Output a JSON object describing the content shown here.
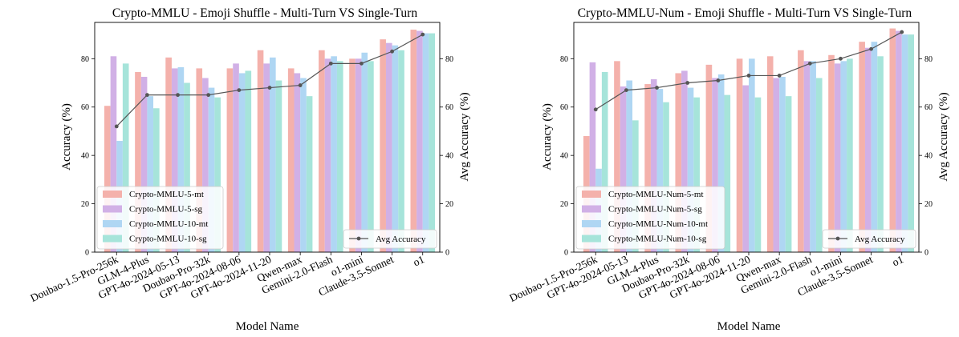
{
  "colors": {
    "mt5": "#f4b1ab",
    "sg5": "#d1b0e6",
    "mt10": "#afd6f3",
    "sg10": "#a6e4da",
    "avg": "#555555"
  },
  "chart_data": [
    {
      "type": "bar",
      "title": "Crypto-MMLU - Emoji Shuffle - Multi-Turn VS Single-Turn",
      "xlabel": "Model Name",
      "ylabel": "Accuracy (%)",
      "y2label": "Avg Accuracy (%)",
      "ylim": [
        0,
        95
      ],
      "y2lim": [
        0,
        95
      ],
      "yticks": [
        0,
        20,
        40,
        60,
        80
      ],
      "grid": false,
      "legend_position": "lower-left",
      "categories": [
        "Doubao-1.5-Pro-256k",
        "GLM-4-Plus",
        "GPT-4o-2024-05-13",
        "Doubao-Pro-32k",
        "GPT-4o-2024-08-06",
        "GPT-4o-2024-11-20",
        "Qwen-max",
        "Gemini-2.0-Flash",
        "o1-mini",
        "Claude-3.5-Sonnet",
        "o1"
      ],
      "series": [
        {
          "name": "Crypto-MMLU-5-mt",
          "color_key": "mt5",
          "values": [
            60.5,
            74.5,
            80.5,
            76,
            76,
            83.5,
            76,
            83.5,
            80,
            88,
            92
          ]
        },
        {
          "name": "Crypto-MMLU-5-sg",
          "color_key": "sg5",
          "values": [
            81,
            72.5,
            76,
            72,
            78,
            78,
            74,
            80,
            80,
            86.5,
            91.5
          ]
        },
        {
          "name": "Crypto-MMLU-10-mt",
          "color_key": "mt10",
          "values": [
            46,
            64.5,
            76.5,
            68,
            74,
            80.5,
            72,
            81,
            82.5,
            85.5,
            90.5
          ]
        },
        {
          "name": "Crypto-MMLU-10-sg",
          "color_key": "sg10",
          "values": [
            78,
            59.5,
            70,
            64,
            75,
            71,
            64.5,
            79,
            79,
            83.5,
            90.5
          ]
        }
      ],
      "line": {
        "name": "Avg Accuracy",
        "values": [
          52,
          65,
          65,
          65,
          67,
          68,
          69,
          78,
          78,
          83,
          90
        ]
      }
    },
    {
      "type": "bar",
      "title": "Crypto-MMLU-Num - Emoji Shuffle - Multi-Turn VS Single-Turn",
      "xlabel": "Model Name",
      "ylabel": "Accuracy (%)",
      "y2label": "Avg Accuracy (%)",
      "ylim": [
        0,
        95
      ],
      "y2lim": [
        0,
        95
      ],
      "yticks": [
        0,
        20,
        40,
        60,
        80
      ],
      "grid": false,
      "legend_position": "lower-left",
      "categories": [
        "Doubao-1.5-Pro-256k",
        "GPT-4o-2024-05-13",
        "GLM-4-Plus",
        "Doubao-Pro-32k",
        "GPT-4o-2024-08-06",
        "GPT-4o-2024-11-20",
        "Qwen-max",
        "Gemini-2.0-Flash",
        "o1-mini",
        "Claude-3.5-Sonnet",
        "o1"
      ],
      "series": [
        {
          "name": "Crypto-MMLU-Num-5-mt",
          "color_key": "mt5",
          "values": [
            48,
            79,
            69.5,
            74,
            77.5,
            80,
            81,
            83.5,
            81.5,
            87,
            92.5
          ]
        },
        {
          "name": "Crypto-MMLU-Num-5-sg",
          "color_key": "sg5",
          "values": [
            78.5,
            68.5,
            71.5,
            75,
            72,
            69,
            72,
            79,
            78,
            84.5,
            91.5
          ]
        },
        {
          "name": "Crypto-MMLU-Num-10-mt",
          "color_key": "mt10",
          "values": [
            34.5,
            71,
            67.5,
            68,
            73.5,
            80,
            72.5,
            79,
            79,
            87,
            90
          ]
        },
        {
          "name": "Crypto-MMLU-Num-10-sg",
          "color_key": "sg10",
          "values": [
            74.5,
            54.5,
            62,
            64,
            65,
            64,
            64.5,
            72,
            80,
            81,
            90
          ]
        }
      ],
      "line": {
        "name": "Avg Accuracy",
        "values": [
          59,
          67,
          68,
          70,
          71,
          73,
          73,
          78,
          80,
          84,
          91
        ]
      }
    }
  ]
}
